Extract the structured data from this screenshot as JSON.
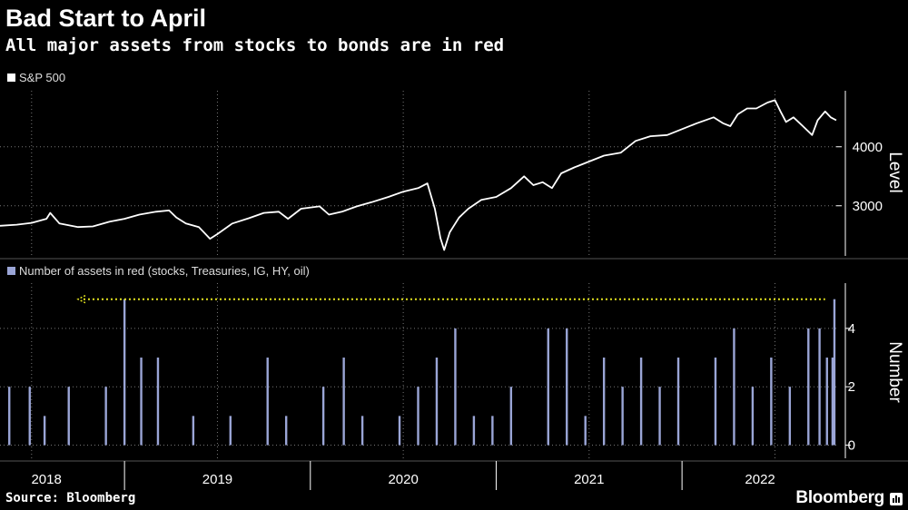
{
  "title": "Bad Start to April",
  "subtitle": "All major assets from stocks to bonds are in red",
  "source": "Source: Bloomberg",
  "brand": "Bloomberg",
  "colors": {
    "background": "#000000",
    "line": "#ffffff",
    "bars": "#9aa5d6",
    "arrow": "#e6e61f",
    "grid": "#777777"
  },
  "chart_data": [
    {
      "type": "line",
      "legend": "S&P 500",
      "ylabel": "Level",
      "yticks": [
        3000,
        4000
      ],
      "ylim": [
        2150,
        4950
      ],
      "xlim": [
        2017.83,
        2022.33
      ],
      "points": [
        [
          2017.83,
          2660
        ],
        [
          2017.92,
          2680
        ],
        [
          2018.0,
          2710
        ],
        [
          2018.08,
          2780
        ],
        [
          2018.1,
          2880
        ],
        [
          2018.15,
          2700
        ],
        [
          2018.25,
          2640
        ],
        [
          2018.33,
          2650
        ],
        [
          2018.42,
          2730
        ],
        [
          2018.5,
          2780
        ],
        [
          2018.58,
          2850
        ],
        [
          2018.67,
          2900
        ],
        [
          2018.74,
          2920
        ],
        [
          2018.78,
          2800
        ],
        [
          2018.83,
          2700
        ],
        [
          2018.9,
          2640
        ],
        [
          2018.96,
          2440
        ],
        [
          2019.0,
          2520
        ],
        [
          2019.08,
          2700
        ],
        [
          2019.17,
          2790
        ],
        [
          2019.25,
          2880
        ],
        [
          2019.33,
          2900
        ],
        [
          2019.38,
          2780
        ],
        [
          2019.45,
          2950
        ],
        [
          2019.55,
          2990
        ],
        [
          2019.6,
          2850
        ],
        [
          2019.67,
          2900
        ],
        [
          2019.75,
          2990
        ],
        [
          2019.83,
          3060
        ],
        [
          2019.92,
          3150
        ],
        [
          2020.0,
          3240
        ],
        [
          2020.08,
          3300
        ],
        [
          2020.13,
          3380
        ],
        [
          2020.17,
          2950
        ],
        [
          2020.2,
          2450
        ],
        [
          2020.22,
          2250
        ],
        [
          2020.25,
          2550
        ],
        [
          2020.3,
          2800
        ],
        [
          2020.35,
          2950
        ],
        [
          2020.42,
          3100
        ],
        [
          2020.5,
          3150
        ],
        [
          2020.58,
          3300
        ],
        [
          2020.65,
          3500
        ],
        [
          2020.7,
          3350
        ],
        [
          2020.75,
          3400
        ],
        [
          2020.8,
          3300
        ],
        [
          2020.85,
          3550
        ],
        [
          2020.92,
          3650
        ],
        [
          2021.0,
          3750
        ],
        [
          2021.08,
          3850
        ],
        [
          2021.17,
          3900
        ],
        [
          2021.25,
          4100
        ],
        [
          2021.33,
          4180
        ],
        [
          2021.42,
          4200
        ],
        [
          2021.5,
          4300
        ],
        [
          2021.58,
          4400
        ],
        [
          2021.67,
          4500
        ],
        [
          2021.72,
          4400
        ],
        [
          2021.76,
          4350
        ],
        [
          2021.8,
          4550
        ],
        [
          2021.85,
          4650
        ],
        [
          2021.9,
          4650
        ],
        [
          2021.96,
          4750
        ],
        [
          2022.0,
          4790
        ],
        [
          2022.03,
          4600
        ],
        [
          2022.06,
          4420
        ],
        [
          2022.1,
          4500
        ],
        [
          2022.15,
          4350
        ],
        [
          2022.2,
          4200
        ],
        [
          2022.23,
          4450
        ],
        [
          2022.27,
          4600
        ],
        [
          2022.3,
          4500
        ],
        [
          2022.33,
          4450
        ]
      ]
    },
    {
      "type": "bar",
      "legend": "Number of assets in red (stocks, Treasuries, IG, HY, oil)",
      "ylabel": "Number",
      "yticks": [
        0,
        2,
        4
      ],
      "ylim": [
        -0.45,
        5.55
      ],
      "xlim": [
        2017.83,
        2022.33
      ],
      "x": [
        2017.88,
        2017.99,
        2018.07,
        2018.2,
        2018.4,
        2018.5,
        2018.59,
        2018.68,
        2018.87,
        2019.07,
        2019.27,
        2019.37,
        2019.57,
        2019.68,
        2019.78,
        2019.98,
        2020.08,
        2020.18,
        2020.28,
        2020.38,
        2020.48,
        2020.58,
        2020.78,
        2020.88,
        2020.98,
        2021.08,
        2021.18,
        2021.28,
        2021.38,
        2021.48,
        2021.68,
        2021.78,
        2021.88,
        2021.98,
        2022.08,
        2022.18,
        2022.24,
        2022.28,
        2022.31,
        2022.32
      ],
      "values": [
        2,
        2,
        1,
        2,
        2,
        5,
        3,
        3,
        1,
        1,
        3,
        1,
        2,
        3,
        1,
        1,
        2,
        3,
        4,
        1,
        1,
        2,
        4,
        4,
        1,
        3,
        2,
        3,
        2,
        3,
        3,
        4,
        2,
        3,
        2,
        4,
        4,
        3,
        3,
        5
      ],
      "annotation": "dotted yellow arrow at level 5 from latest bar back to 2018"
    }
  ],
  "x_axis": {
    "labels": [
      "2018",
      "2019",
      "2020",
      "2021",
      "2022"
    ]
  }
}
